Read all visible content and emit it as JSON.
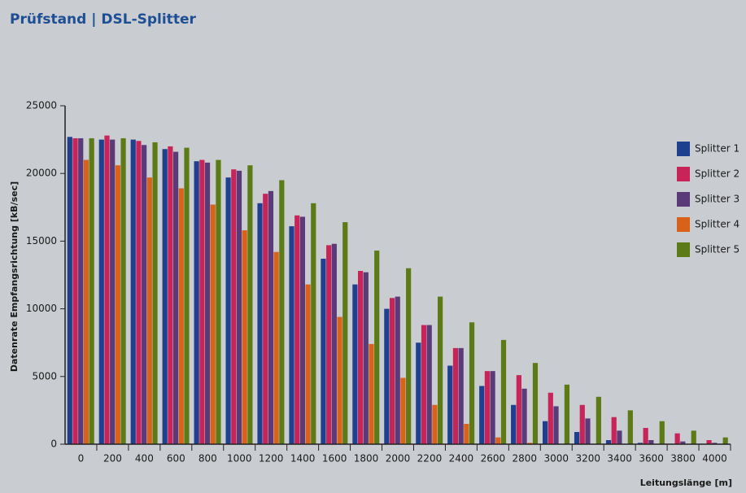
{
  "chart_data": {
    "type": "bar",
    "title": "Prüfstand | DSL-Splitter",
    "y_label": "Datenrate Empfangsrichtung [kB/sec]",
    "x_label": "Leitungslänge [m]",
    "categories": [
      "0",
      "200",
      "400",
      "600",
      "800",
      "1000",
      "1200",
      "1400",
      "1600",
      "1800",
      "2000",
      "2200",
      "2400",
      "2600",
      "2800",
      "3000",
      "3200",
      "3400",
      "3600",
      "3800",
      "4000"
    ],
    "series": [
      {
        "name": "Splitter 1",
        "color": "#1f3f8f",
        "values": [
          22700,
          22500,
          22500,
          21800,
          20900,
          19700,
          17800,
          16100,
          13700,
          11800,
          10000,
          7500,
          5800,
          4300,
          2900,
          1700,
          900,
          300,
          100,
          0,
          0
        ]
      },
      {
        "name": "Splitter 2",
        "color": "#c8245a",
        "values": [
          22600,
          22800,
          22400,
          22000,
          21000,
          20300,
          18500,
          16900,
          14700,
          12800,
          10800,
          8800,
          7100,
          5400,
          5100,
          3800,
          2900,
          2000,
          1200,
          800,
          300
        ]
      },
      {
        "name": "Splitter 3",
        "color": "#5a3a78",
        "values": [
          22600,
          22500,
          22100,
          21600,
          20800,
          20200,
          18700,
          16800,
          14800,
          12700,
          10900,
          8800,
          7100,
          5400,
          4100,
          2800,
          1900,
          1000,
          300,
          200,
          100
        ]
      },
      {
        "name": "Splitter 4",
        "color": "#d9621a",
        "values": [
          21000,
          20600,
          19700,
          18900,
          17700,
          15800,
          14200,
          11800,
          9400,
          7400,
          4900,
          2900,
          1500,
          500,
          100,
          0,
          0,
          0,
          0,
          0,
          0
        ]
      },
      {
        "name": "Splitter 5",
        "color": "#5c7a16",
        "values": [
          22600,
          22600,
          22300,
          21900,
          21000,
          20600,
          19500,
          17800,
          16400,
          14300,
          13000,
          10900,
          9000,
          7700,
          6000,
          4400,
          3500,
          2500,
          1700,
          1000,
          500
        ]
      }
    ],
    "ylim": [
      0,
      25000
    ],
    "yticks": [
      0,
      5000,
      10000,
      15000,
      20000,
      25000
    ],
    "legend": "right"
  }
}
